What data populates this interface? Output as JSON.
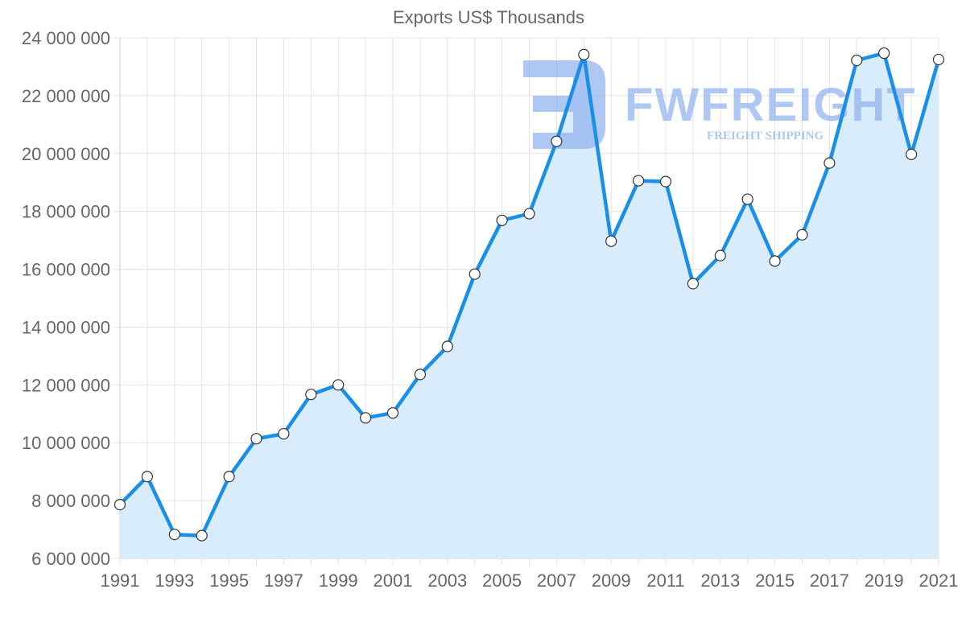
{
  "chart_data": {
    "type": "area",
    "title": "Exports US$ Thousands",
    "xlabel": "",
    "ylabel": "",
    "x": [
      1991,
      1992,
      1993,
      1994,
      1995,
      1996,
      1997,
      1998,
      1999,
      2000,
      2001,
      2002,
      2003,
      2004,
      2005,
      2006,
      2007,
      2008,
      2009,
      2010,
      2011,
      2012,
      2013,
      2014,
      2015,
      2016,
      2017,
      2018,
      2019,
      2020,
      2021
    ],
    "series": [
      {
        "name": "Exports US$ Thousands",
        "values": [
          7860000,
          8830000,
          6830000,
          6790000,
          8830000,
          10140000,
          10310000,
          11670000,
          12000000,
          10860000,
          11030000,
          12360000,
          13330000,
          15830000,
          17690000,
          17920000,
          20420000,
          23420000,
          16970000,
          19060000,
          19030000,
          15500000,
          16470000,
          18420000,
          16280000,
          17190000,
          19670000,
          23220000,
          23470000,
          19970000,
          23250000
        ]
      }
    ],
    "xticks": [
      "1991",
      "1993",
      "1995",
      "1997",
      "1999",
      "2001",
      "2003",
      "2005",
      "2007",
      "2009",
      "2011",
      "2013",
      "2015",
      "2017",
      "2019",
      "2021"
    ],
    "yticks": [
      "24 000 000",
      "22 000 000",
      "20 000 000",
      "18 000 000",
      "16 000 000",
      "14 000 000",
      "12 000 000",
      "10 000 000",
      "8 000 000",
      "6 000 000"
    ],
    "ylim": [
      6000000,
      24000000
    ],
    "xlim": [
      1991,
      2021
    ],
    "grid": true,
    "legend": "none",
    "colors": {
      "line": "#1a8fe8",
      "fill": "#d9ecfc",
      "marker_fill": "#ffffff",
      "marker_stroke": "#333333",
      "text": "#666666",
      "grid": "#e3e3e3"
    }
  },
  "watermark": {
    "brand": "FWFREIGHT",
    "tagline": "FREIGHT SHIPPING",
    "color": "#8fb3ef"
  }
}
